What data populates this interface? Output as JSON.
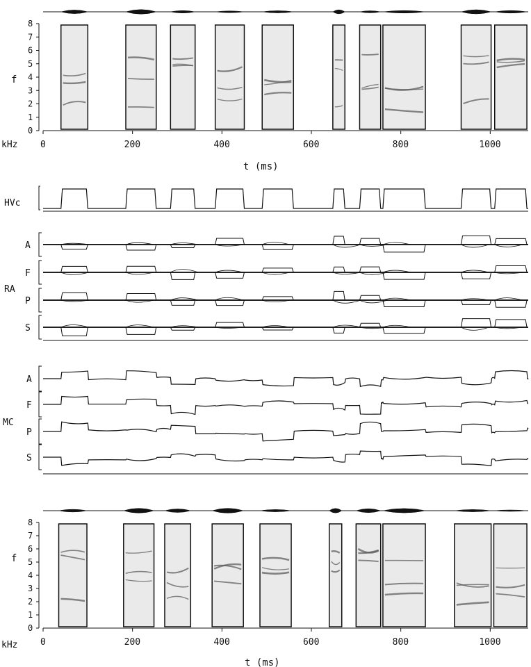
{
  "chart_data": [
    {
      "panel": "top-spectrogram",
      "type": "heatmap",
      "ylabel": "f",
      "yunit": "kHz",
      "xlabel": "t (ms)",
      "xlim": [
        0,
        1085
      ],
      "ylim": [
        0,
        8
      ],
      "xticks": [
        0,
        200,
        400,
        600,
        800,
        1000
      ],
      "yticks": [
        0,
        1,
        2,
        3,
        4,
        5,
        6,
        7,
        8
      ],
      "syllables_ms": [
        [
          40,
          100
        ],
        [
          185,
          253
        ],
        [
          285,
          340
        ],
        [
          385,
          450
        ],
        [
          490,
          560
        ],
        [
          648,
          675
        ],
        [
          708,
          755
        ],
        [
          760,
          855
        ],
        [
          935,
          1002
        ],
        [
          1010,
          1082
        ]
      ]
    },
    {
      "panel": "HVc",
      "type": "line",
      "label": "HVc",
      "xlim": [
        0,
        1085
      ],
      "on_intervals_ms": [
        [
          40,
          100
        ],
        [
          185,
          253
        ],
        [
          285,
          340
        ],
        [
          385,
          450
        ],
        [
          490,
          560
        ],
        [
          648,
          675
        ],
        [
          708,
          755
        ],
        [
          760,
          855
        ],
        [
          935,
          1002
        ],
        [
          1010,
          1082
        ]
      ]
    },
    {
      "panel": "RA",
      "type": "line",
      "label": "RA",
      "xlim": [
        0,
        1085
      ],
      "series": [
        {
          "name": "A"
        },
        {
          "name": "F"
        },
        {
          "name": "P"
        },
        {
          "name": "S"
        }
      ]
    },
    {
      "panel": "MC",
      "type": "line",
      "label": "MC",
      "xlim": [
        0,
        1085
      ],
      "series": [
        {
          "name": "A"
        },
        {
          "name": "F"
        },
        {
          "name": "P"
        },
        {
          "name": "S"
        }
      ]
    },
    {
      "panel": "bottom-spectrogram",
      "type": "heatmap",
      "ylabel": "f",
      "yunit": "kHz",
      "xlabel": "t (ms)",
      "xlim": [
        0,
        1085
      ],
      "ylim": [
        0,
        8
      ],
      "xticks": [
        0,
        200,
        400,
        600,
        800,
        1000
      ],
      "yticks": [
        0,
        1,
        2,
        3,
        4,
        5,
        6,
        7,
        8
      ],
      "syllables_ms": [
        [
          35,
          98
        ],
        [
          180,
          248
        ],
        [
          272,
          330
        ],
        [
          378,
          448
        ],
        [
          485,
          555
        ],
        [
          640,
          668
        ],
        [
          700,
          755
        ],
        [
          760,
          855
        ],
        [
          920,
          1002
        ],
        [
          1008,
          1082
        ]
      ]
    }
  ],
  "colors": {
    "ink": "#111111",
    "spectro_fill": "#d9d9d9",
    "trace": "#222222"
  }
}
